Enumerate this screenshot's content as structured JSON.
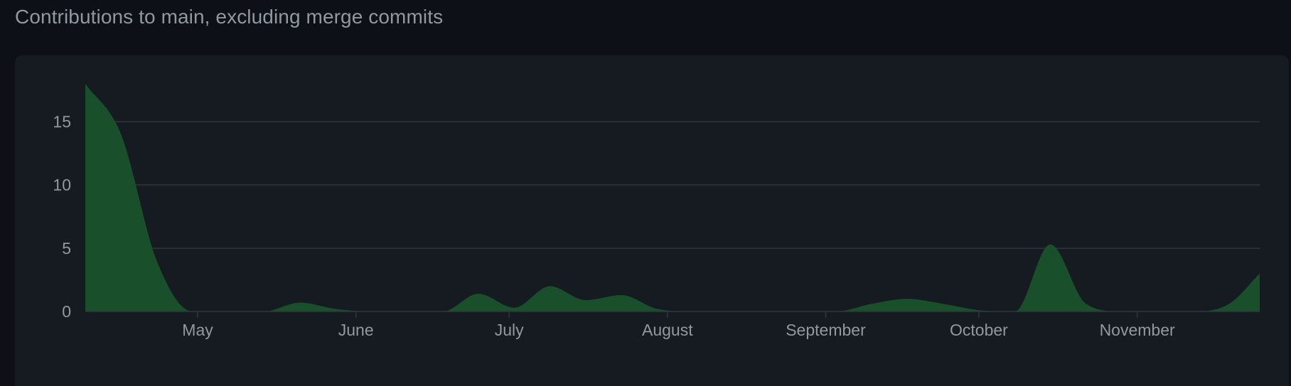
{
  "header": {
    "title": "Contributions to main, excluding merge commits"
  },
  "colors": {
    "page_background": "#0d1117",
    "panel_background": "#161b22",
    "grid": "#30363d",
    "area_fill": "#1a4f2c",
    "area_stroke": "#238636",
    "text": "#9198a1"
  },
  "chart_data": {
    "type": "area",
    "title": "Contributions to main, excluding merge commits",
    "xlabel": "",
    "ylabel": "",
    "ylim": [
      0,
      18
    ],
    "yticks": [
      0,
      5,
      10,
      15
    ],
    "grid": true,
    "x_tick_labels": [
      "May",
      "June",
      "July",
      "August",
      "September",
      "October",
      "November"
    ],
    "x_tick_dates": [
      "2023-05-01",
      "2023-06-01",
      "2023-07-01",
      "2023-08-01",
      "2023-09-01",
      "2023-10-01",
      "2023-11-01"
    ],
    "xlim": [
      "2023-04-09",
      "2023-11-25"
    ],
    "series": [
      {
        "x": [
          "2023-04-09",
          "2023-04-16",
          "2023-04-23",
          "2023-04-30",
          "2023-05-07",
          "2023-05-14",
          "2023-05-21",
          "2023-05-28",
          "2023-06-04",
          "2023-06-11",
          "2023-06-18",
          "2023-06-25",
          "2023-07-02",
          "2023-07-09",
          "2023-07-16",
          "2023-07-23",
          "2023-07-30",
          "2023-08-06",
          "2023-08-13",
          "2023-08-20",
          "2023-08-27",
          "2023-09-03",
          "2023-09-10",
          "2023-09-17",
          "2023-09-24",
          "2023-10-01",
          "2023-10-08",
          "2023-10-15",
          "2023-10-22",
          "2023-10-29",
          "2023-11-05",
          "2023-11-12",
          "2023-11-19",
          "2023-11-25"
        ],
        "values": [
          18,
          14,
          4,
          0,
          0,
          0,
          0.7,
          0.2,
          0,
          0,
          0,
          1.4,
          0.3,
          2,
          0.9,
          1.3,
          0.2,
          0,
          0,
          0,
          0,
          0,
          0.6,
          1,
          0.6,
          0.1,
          0,
          5.3,
          0.6,
          0,
          0,
          0,
          0.6,
          3
        ]
      }
    ]
  }
}
